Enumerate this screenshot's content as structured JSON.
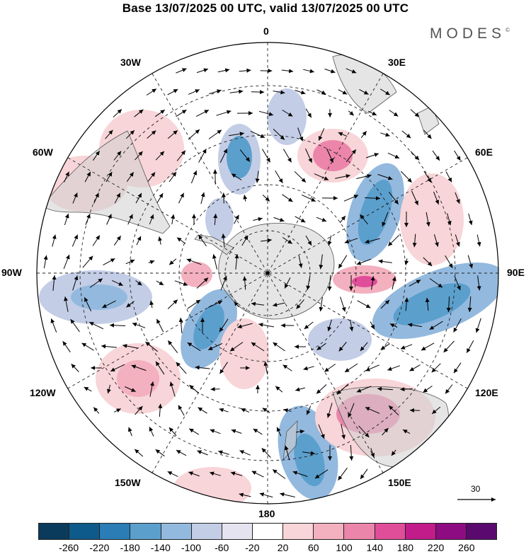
{
  "title": "Base 13/07/2025 00 UTC, valid 13/07/2025 00 UTC",
  "brand": {
    "name": "MODES",
    "mark": "©"
  },
  "longitude_labels": {
    "top": "0",
    "top_right": "30E",
    "upper_right": "60E",
    "right": "90E",
    "lower_right": "120E",
    "bottom_right": "150E",
    "bottom": "180",
    "bottom_left": "150W",
    "lower_left": "120W",
    "left": "90W",
    "upper_left": "60W",
    "top_left": "30W"
  },
  "reference_vector": {
    "label": "30"
  },
  "colorbar": {
    "ticks": [
      "-260",
      "-220",
      "-180",
      "-140",
      "-100",
      "-60",
      "-20",
      "20",
      "60",
      "100",
      "140",
      "180",
      "220",
      "260"
    ],
    "colors": [
      "#0b3b5c",
      "#0e5a8a",
      "#2a7db5",
      "#5b9fcd",
      "#93b9de",
      "#c3cde6",
      "#e6e3f0",
      "#ffffff",
      "#f8d5d8",
      "#f3b0bf",
      "#ec85aa",
      "#e04e9a",
      "#c21c8a",
      "#8e0c82",
      "#5a0a6e"
    ]
  }
}
